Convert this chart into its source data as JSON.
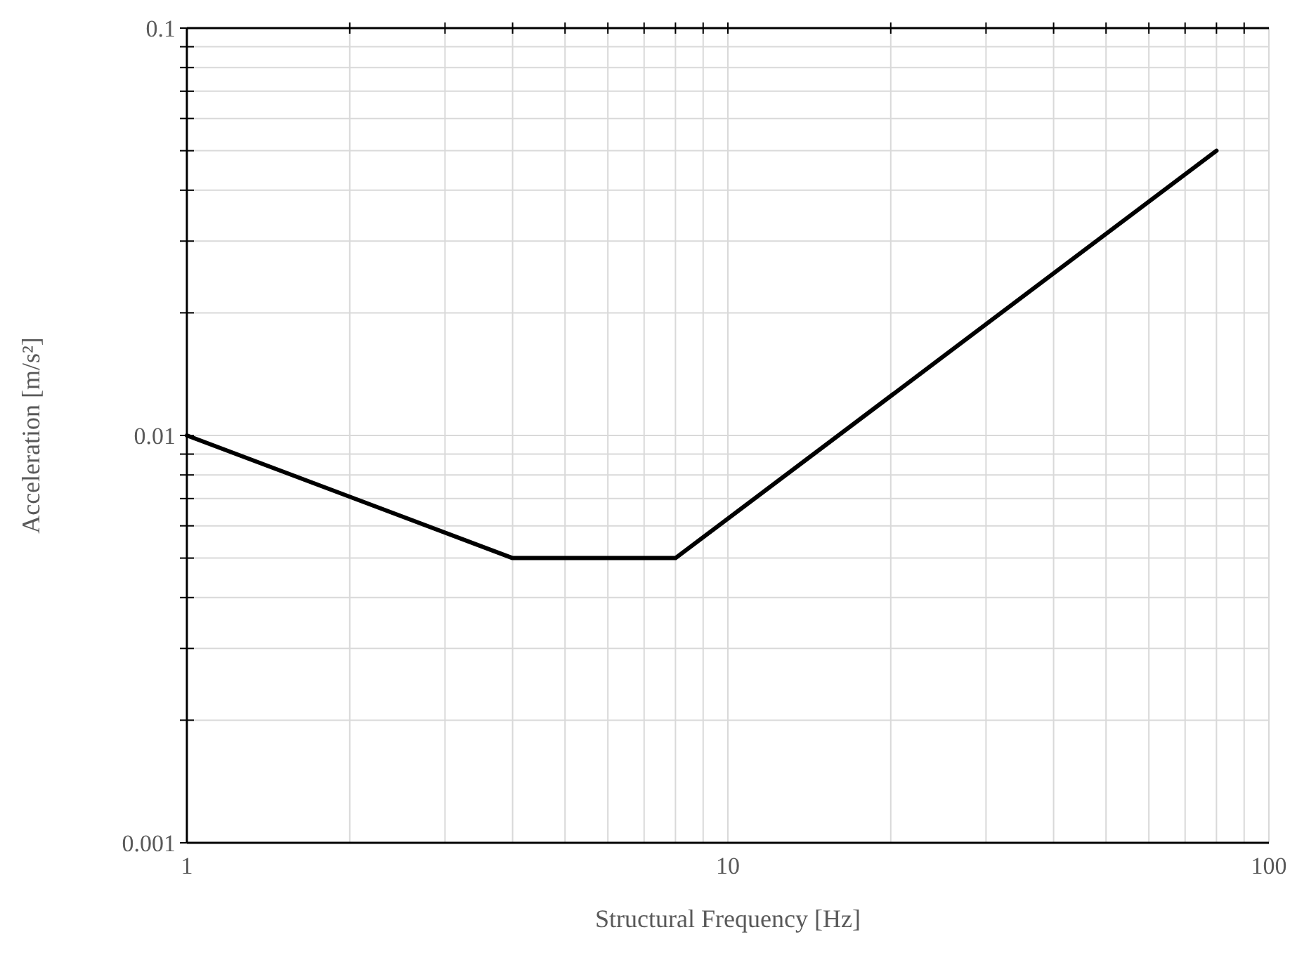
{
  "chart_data": {
    "type": "line",
    "xlabel": "Structural Frequency [Hz]",
    "ylabel": "Acceleration [m/s²]",
    "log": "xy",
    "grid": true,
    "marker": "none",
    "line_style": "solid",
    "xlim": [
      1,
      100
    ],
    "ylim": [
      0.001,
      0.1
    ],
    "xticks": [
      1,
      {
        "value": 2,
        "label": null
      },
      {
        "value": 3,
        "label": null
      },
      {
        "value": 4,
        "label": null
      },
      {
        "value": 5,
        "label": null
      },
      {
        "value": 6,
        "label": null
      },
      {
        "value": 7,
        "label": null
      },
      {
        "value": 8,
        "label": null
      },
      {
        "value": 9,
        "label": null
      },
      10,
      {
        "value": 20,
        "label": null
      },
      {
        "value": 30,
        "label": null
      },
      {
        "value": 40,
        "label": null
      },
      {
        "value": 50,
        "label": null
      },
      {
        "value": 60,
        "label": null
      },
      {
        "value": 70,
        "label": null
      },
      {
        "value": 80,
        "label": null
      },
      {
        "value": 90,
        "label": null
      },
      100
    ],
    "yticks": [
      0.001,
      {
        "value": 0.002,
        "label": null
      },
      {
        "value": 0.003,
        "label": null
      },
      {
        "value": 0.004,
        "label": null
      },
      {
        "value": 0.005,
        "label": null
      },
      {
        "value": 0.006,
        "label": null
      },
      {
        "value": 0.007,
        "label": null
      },
      {
        "value": 0.008,
        "label": null
      },
      {
        "value": 0.009,
        "label": null
      },
      0.01,
      {
        "value": 0.02,
        "label": null
      },
      {
        "value": 0.03,
        "label": null
      },
      {
        "value": 0.04,
        "label": null
      },
      {
        "value": 0.05,
        "label": null
      },
      {
        "value": 0.06,
        "label": null
      },
      {
        "value": 0.07,
        "label": null
      },
      {
        "value": 0.08,
        "label": null
      },
      {
        "value": 0.09,
        "label": null
      },
      0.1
    ],
    "series": [
      {
        "color": "#000000",
        "x": [
          1,
          4,
          8,
          80
        ],
        "values": [
          0.01,
          0.005,
          0.005,
          0.05
        ]
      }
    ]
  }
}
